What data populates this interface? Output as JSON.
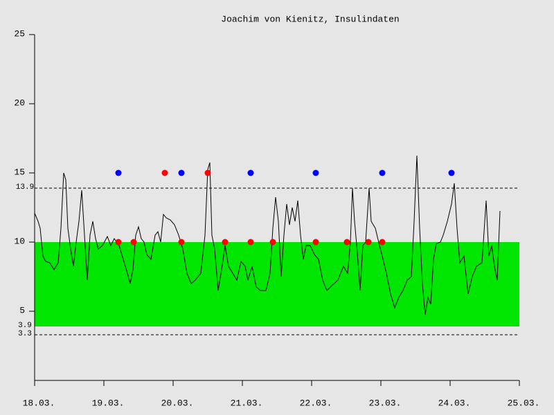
{
  "chart_data": {
    "type": "line",
    "title": "Joachim von Kienitz, Insulindaten",
    "xlim": [
      0,
      7
    ],
    "xticks": [
      {
        "value": 0,
        "label": "18.03."
      },
      {
        "value": 1,
        "label": "19.03."
      },
      {
        "value": 2,
        "label": "20.03."
      },
      {
        "value": 3,
        "label": "21.03."
      },
      {
        "value": 4,
        "label": "22.03."
      },
      {
        "value": 5,
        "label": "23.03."
      },
      {
        "value": 6,
        "label": "24.03."
      },
      {
        "value": 7,
        "label": "25.03."
      }
    ],
    "ylim": [
      0,
      25
    ],
    "yticks": [
      5,
      10,
      15,
      20,
      25
    ],
    "target_band": {
      "range": [
        3.9,
        10
      ],
      "color": "#00e600"
    },
    "dashed_lines": [
      13.9,
      3.3
    ],
    "series": [
      {
        "color": "#000000",
        "kind": "line",
        "x": [
          0,
          0.05,
          0.08,
          0.12,
          0.16,
          0.22,
          0.28,
          0.34,
          0.38,
          0.42,
          0.45,
          0.48,
          0.52,
          0.56,
          0.6,
          0.64,
          0.68,
          0.72,
          0.76,
          0.8,
          0.84,
          0.88,
          0.92,
          0.98,
          1.05,
          1.1,
          1.15,
          1.22,
          1.28,
          1.34,
          1.38,
          1.42,
          1.46,
          1.5,
          1.54,
          1.58,
          1.62,
          1.68,
          1.74,
          1.78,
          1.82,
          1.86,
          1.9,
          1.96,
          2.02,
          2.08,
          2.14,
          2.2,
          2.26,
          2.32,
          2.4,
          2.46,
          2.5,
          2.53,
          2.56,
          2.6,
          2.65,
          2.7,
          2.75,
          2.8,
          2.86,
          2.92,
          2.98,
          3.04,
          3.08,
          3.14,
          3.2,
          3.26,
          3.34,
          3.4,
          3.44,
          3.48,
          3.52,
          3.56,
          3.6,
          3.64,
          3.68,
          3.72,
          3.76,
          3.8,
          3.84,
          3.88,
          3.92,
          3.98,
          4.04,
          4.1,
          4.16,
          4.22,
          4.3,
          4.38,
          4.46,
          4.52,
          4.56,
          4.59,
          4.62,
          4.66,
          4.7,
          4.74,
          4.78,
          4.83,
          4.86,
          4.92,
          4.98,
          5.02,
          5.08,
          5.14,
          5.2,
          5.26,
          5.32,
          5.38,
          5.44,
          5.48,
          5.52,
          5.56,
          5.6,
          5.64,
          5.68,
          5.72,
          5.76,
          5.8,
          5.86,
          5.9,
          5.96,
          6.02,
          6.06,
          6.1,
          6.14,
          6.2,
          6.26,
          6.32,
          6.38,
          6.46,
          6.52,
          6.56,
          6.6,
          6.64,
          6.68,
          6.72
        ],
        "values": [
          12.1,
          11.5,
          11,
          9,
          8.6,
          8.5,
          8,
          8.5,
          11,
          15,
          14.5,
          11,
          9.5,
          8.25,
          10,
          11.5,
          13.75,
          10.5,
          7.25,
          10.5,
          11.5,
          10.25,
          9.5,
          9.75,
          10.4,
          9.75,
          10.25,
          9.75,
          8.75,
          7.75,
          7,
          8,
          10.5,
          11.1,
          10.25,
          10,
          9.1,
          8.75,
          10.5,
          10.75,
          10,
          12,
          11.75,
          11.6,
          11.25,
          10.5,
          9.5,
          7.75,
          7,
          7.25,
          7.75,
          10.5,
          15.25,
          15.75,
          10.5,
          9.5,
          6.5,
          8,
          9.75,
          8.25,
          7.75,
          7.25,
          8.6,
          8.25,
          7.25,
          8.25,
          6.75,
          6.5,
          6.5,
          7.75,
          11,
          13.25,
          11.5,
          7.5,
          10.5,
          12.75,
          11.25,
          12.5,
          11.5,
          13,
          10.5,
          8.75,
          9.75,
          9.75,
          9.1,
          8.75,
          7.25,
          6.5,
          6.9,
          7.25,
          8.25,
          7.75,
          10,
          13.9,
          11.5,
          9.25,
          6.5,
          9.75,
          10,
          13.9,
          11.5,
          11,
          9.75,
          9,
          7.75,
          6.25,
          5.25,
          6,
          6.5,
          7.25,
          7.5,
          11.5,
          16.25,
          11,
          7,
          4.75,
          6,
          5.5,
          8.75,
          9.9,
          10,
          10.5,
          11.5,
          12.75,
          14.25,
          11,
          8.5,
          9,
          6.25,
          7.5,
          8.25,
          8.5,
          13,
          9,
          9.75,
          8.25,
          7.25,
          12.25
        ]
      },
      {
        "color": "#ff0000",
        "kind": "dots",
        "x": [
          1.21,
          1.43,
          1.88,
          2.12,
          2.5,
          2.75,
          3.12,
          3.44,
          4.06,
          4.51,
          4.82,
          5.02
        ],
        "values": [
          10,
          10,
          15,
          10,
          15,
          10,
          10,
          10,
          10,
          10,
          10,
          10
        ]
      },
      {
        "color": "#0000ff",
        "kind": "dots",
        "x": [
          1.21,
          2.12,
          3.12,
          4.06,
          5.02,
          6.02
        ],
        "values": [
          15,
          15,
          15,
          15,
          15,
          15
        ]
      }
    ]
  }
}
